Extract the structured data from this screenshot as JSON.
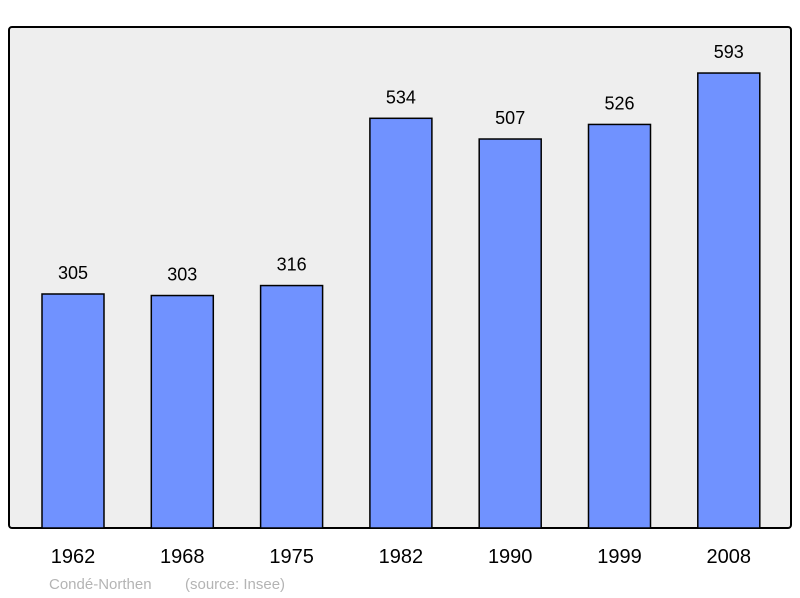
{
  "chart_data": {
    "type": "bar",
    "title": "",
    "xlabel": "",
    "ylabel": "",
    "categories": [
      "1962",
      "1968",
      "1975",
      "1982",
      "1990",
      "1999",
      "2008"
    ],
    "values": [
      305,
      303,
      316,
      534,
      507,
      526,
      593
    ],
    "ylim": [
      0,
      653
    ],
    "grid": false,
    "data_labels": true,
    "colors": {
      "bar": "#7092ff",
      "background": "#eeeeee",
      "border": "#000000"
    }
  },
  "footer": {
    "place": "Condé-Northen",
    "source": "(source: Insee)"
  }
}
